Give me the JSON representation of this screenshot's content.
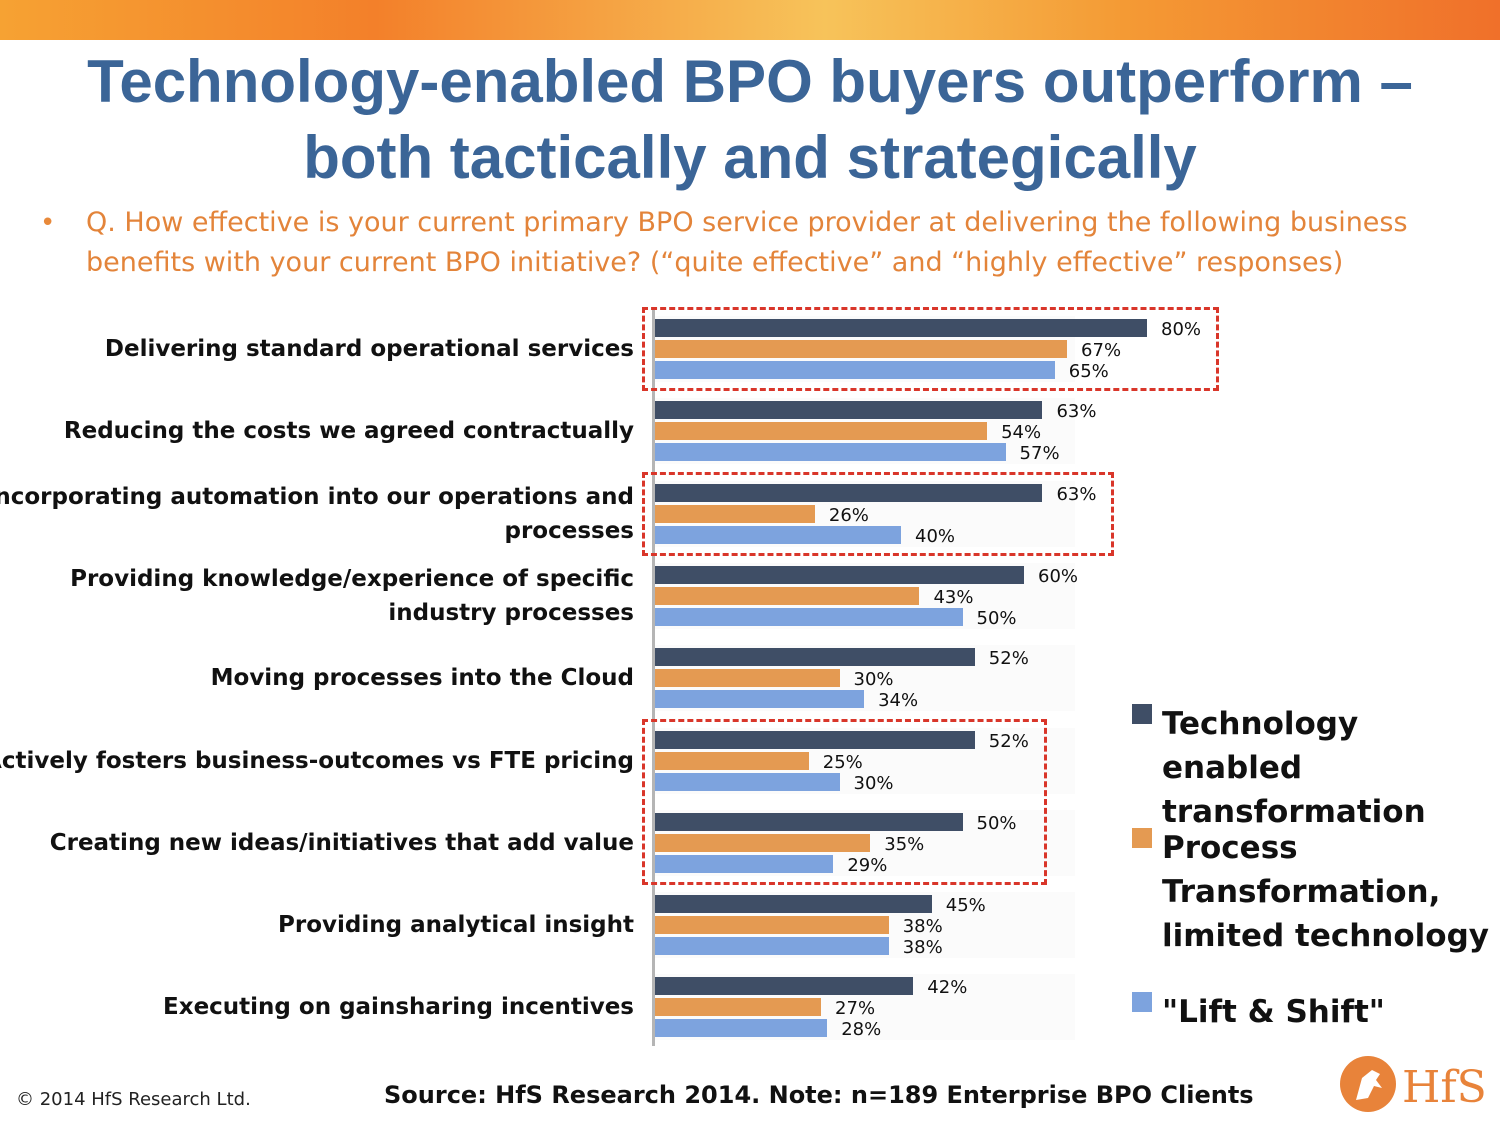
{
  "title_line1": "Technology-enabled BPO buyers outperform –",
  "title_line2": "both tactically and strategically",
  "question": "Q. How effective is your current primary BPO service provider at delivering the following business benefits with your current BPO initiative? (“quite effective” and “highly effective” responses)",
  "chart_data": {
    "type": "bar",
    "orientation": "horizontal",
    "categories": [
      "Delivering standard operational services",
      "Reducing the costs we agreed contractually",
      "Incorporating automation into our operations and processes",
      "Providing knowledge/experience of specific industry processes",
      "Moving processes into the Cloud",
      "Actively fosters business-outcomes vs FTE pricing",
      "Creating new ideas/initiatives that add value",
      "Providing analytical insight",
      "Executing on gainsharing incentives"
    ],
    "category_lines": [
      [
        "Delivering standard operational services"
      ],
      [
        "Reducing the costs we agreed contractually"
      ],
      [
        "Incorporating automation into our operations and",
        "processes"
      ],
      [
        "Providing knowledge/experience of specific",
        "industry processes"
      ],
      [
        "Moving processes into the Cloud"
      ],
      [
        "Actively fosters business-outcomes vs FTE pricing"
      ],
      [
        "Creating new ideas/initiatives that add value"
      ],
      [
        "Providing analytical insight"
      ],
      [
        "Executing on gainsharing incentives"
      ]
    ],
    "series": [
      {
        "name": "Technology enabled transformation",
        "color": "#3f4e66",
        "values": [
          80,
          63,
          63,
          60,
          52,
          52,
          50,
          45,
          42
        ]
      },
      {
        "name": "Process Transformation, limited  technology",
        "color": "#e49a52",
        "values": [
          67,
          54,
          26,
          43,
          30,
          25,
          35,
          38,
          27
        ]
      },
      {
        "name": "\"Lift & Shift\"",
        "color": "#7da3de",
        "values": [
          65,
          57,
          40,
          50,
          34,
          30,
          29,
          38,
          28
        ]
      }
    ],
    "value_suffix": "%",
    "highlighted_categories": [
      [
        0
      ],
      [
        2
      ],
      [
        5,
        6
      ]
    ],
    "legend_position": "right",
    "grid": false
  },
  "legend": [
    {
      "lines": [
        "Technology enabled",
        "transformation"
      ],
      "color": "#3f4e66"
    },
    {
      "lines": [
        "Process",
        "Transformation,",
        "limited  technology"
      ],
      "color": "#e49a52"
    },
    {
      "lines": [
        "\"Lift & Shift\""
      ],
      "color": "#7da3de"
    }
  ],
  "footer": {
    "copyright": "© 2014 HfS Research Ltd.",
    "source": "Source: HfS Research 2014.  Note: n=189 Enterprise BPO Clients",
    "logo_text": "HfS"
  }
}
